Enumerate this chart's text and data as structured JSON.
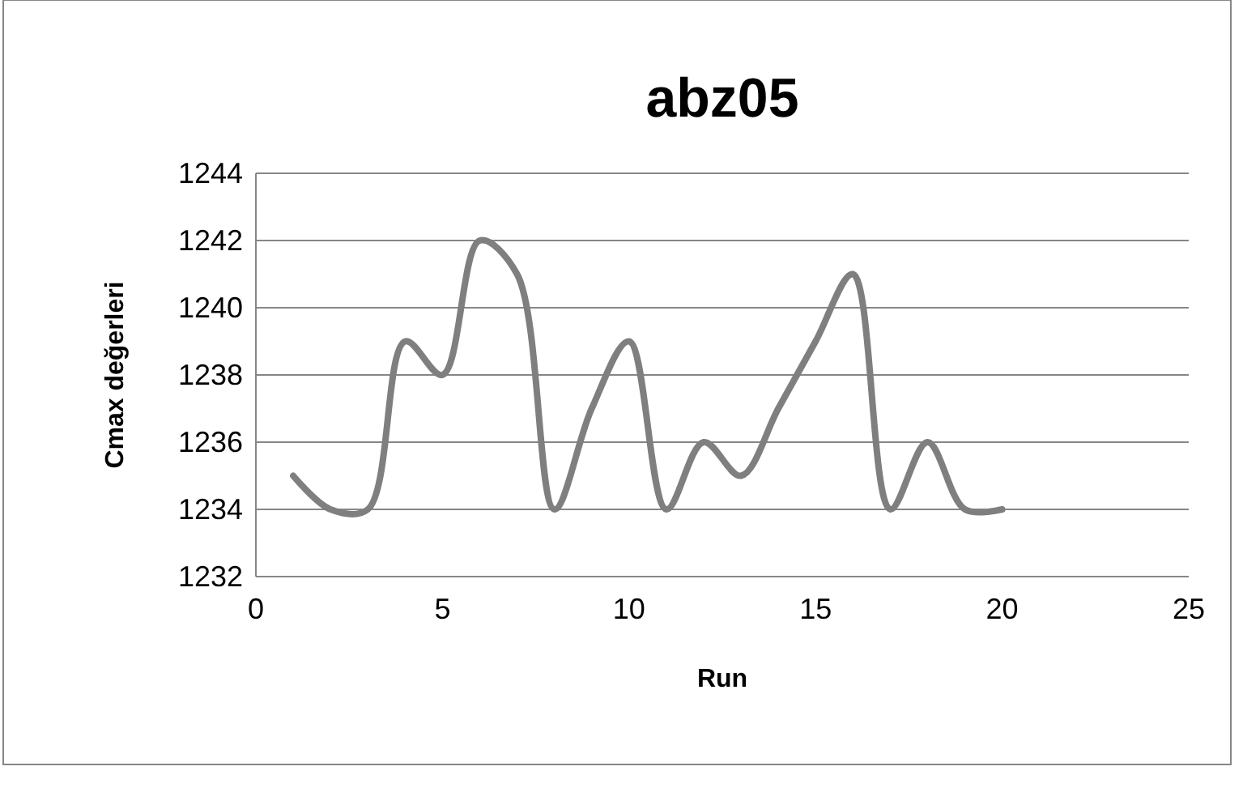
{
  "chart_data": {
    "type": "line",
    "title": "abz05",
    "xlabel": "Run",
    "ylabel": "Cmax değerleri",
    "x": [
      1,
      2,
      3,
      4,
      5,
      6,
      7,
      8,
      9,
      10,
      11,
      12,
      13,
      14,
      15,
      16,
      17,
      18,
      19,
      20
    ],
    "series": [
      {
        "color": "#7f7f7f",
        "values": [
          1235,
          1234,
          1234,
          1239,
          1238,
          1242,
          1241,
          1234,
          1237,
          1239,
          1234,
          1236,
          1235,
          1237,
          1239,
          1241,
          1234,
          1236,
          1234,
          1234
        ]
      }
    ],
    "xlim": [
      0,
      25
    ],
    "xticks": [
      0,
      5,
      10,
      15,
      20,
      25
    ],
    "ylim": [
      1232,
      1244
    ],
    "yticks": [
      1232,
      1234,
      1236,
      1238,
      1240,
      1242,
      1244
    ],
    "grid": "y",
    "marker": "none",
    "line_style": "solid"
  }
}
